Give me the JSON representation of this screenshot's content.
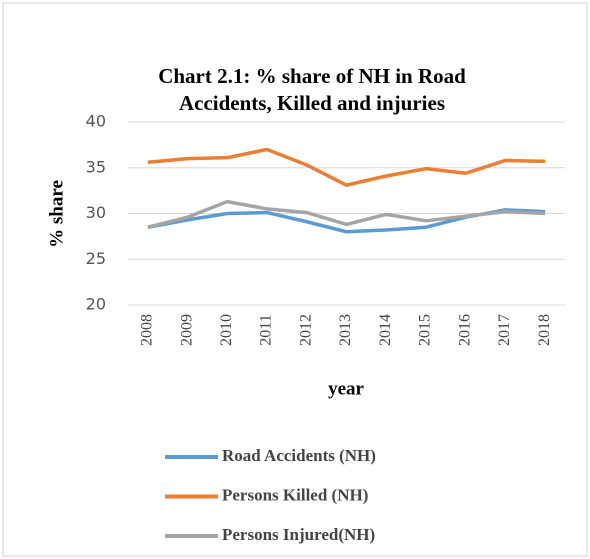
{
  "chart_data": {
    "type": "line",
    "title": [
      "Chart 2.1: % share of NH in Road",
      "Accidents, Killed and injuries"
    ],
    "x_label": "year",
    "y_label": "% share",
    "categories": [
      "2008",
      "2009",
      "2010",
      "2011",
      "2012",
      "2013",
      "2014",
      "2015",
      "2016",
      "2017",
      "2018"
    ],
    "series": [
      {
        "name": "Road Accidents (NH)",
        "color": "#5b9bd5",
        "values": [
          28.5,
          29.3,
          30.0,
          30.1,
          29.1,
          28.0,
          28.2,
          28.5,
          29.6,
          30.4,
          30.2
        ]
      },
      {
        "name": "Persons Killed (NH)",
        "color": "#ed7d31",
        "values": [
          35.6,
          36.0,
          36.1,
          37.0,
          35.3,
          33.1,
          34.1,
          34.9,
          34.4,
          35.8,
          35.7
        ]
      },
      {
        "name": "Persons Injured(NH)",
        "color": "#a5a5a5",
        "values": [
          28.5,
          29.6,
          31.3,
          30.5,
          30.1,
          28.8,
          29.9,
          29.2,
          29.7,
          30.2,
          30.0
        ]
      }
    ],
    "ylim": [
      20,
      40
    ],
    "yticks": [
      20,
      25,
      30,
      35,
      40
    ],
    "grid": true,
    "legend": "bottom"
  }
}
